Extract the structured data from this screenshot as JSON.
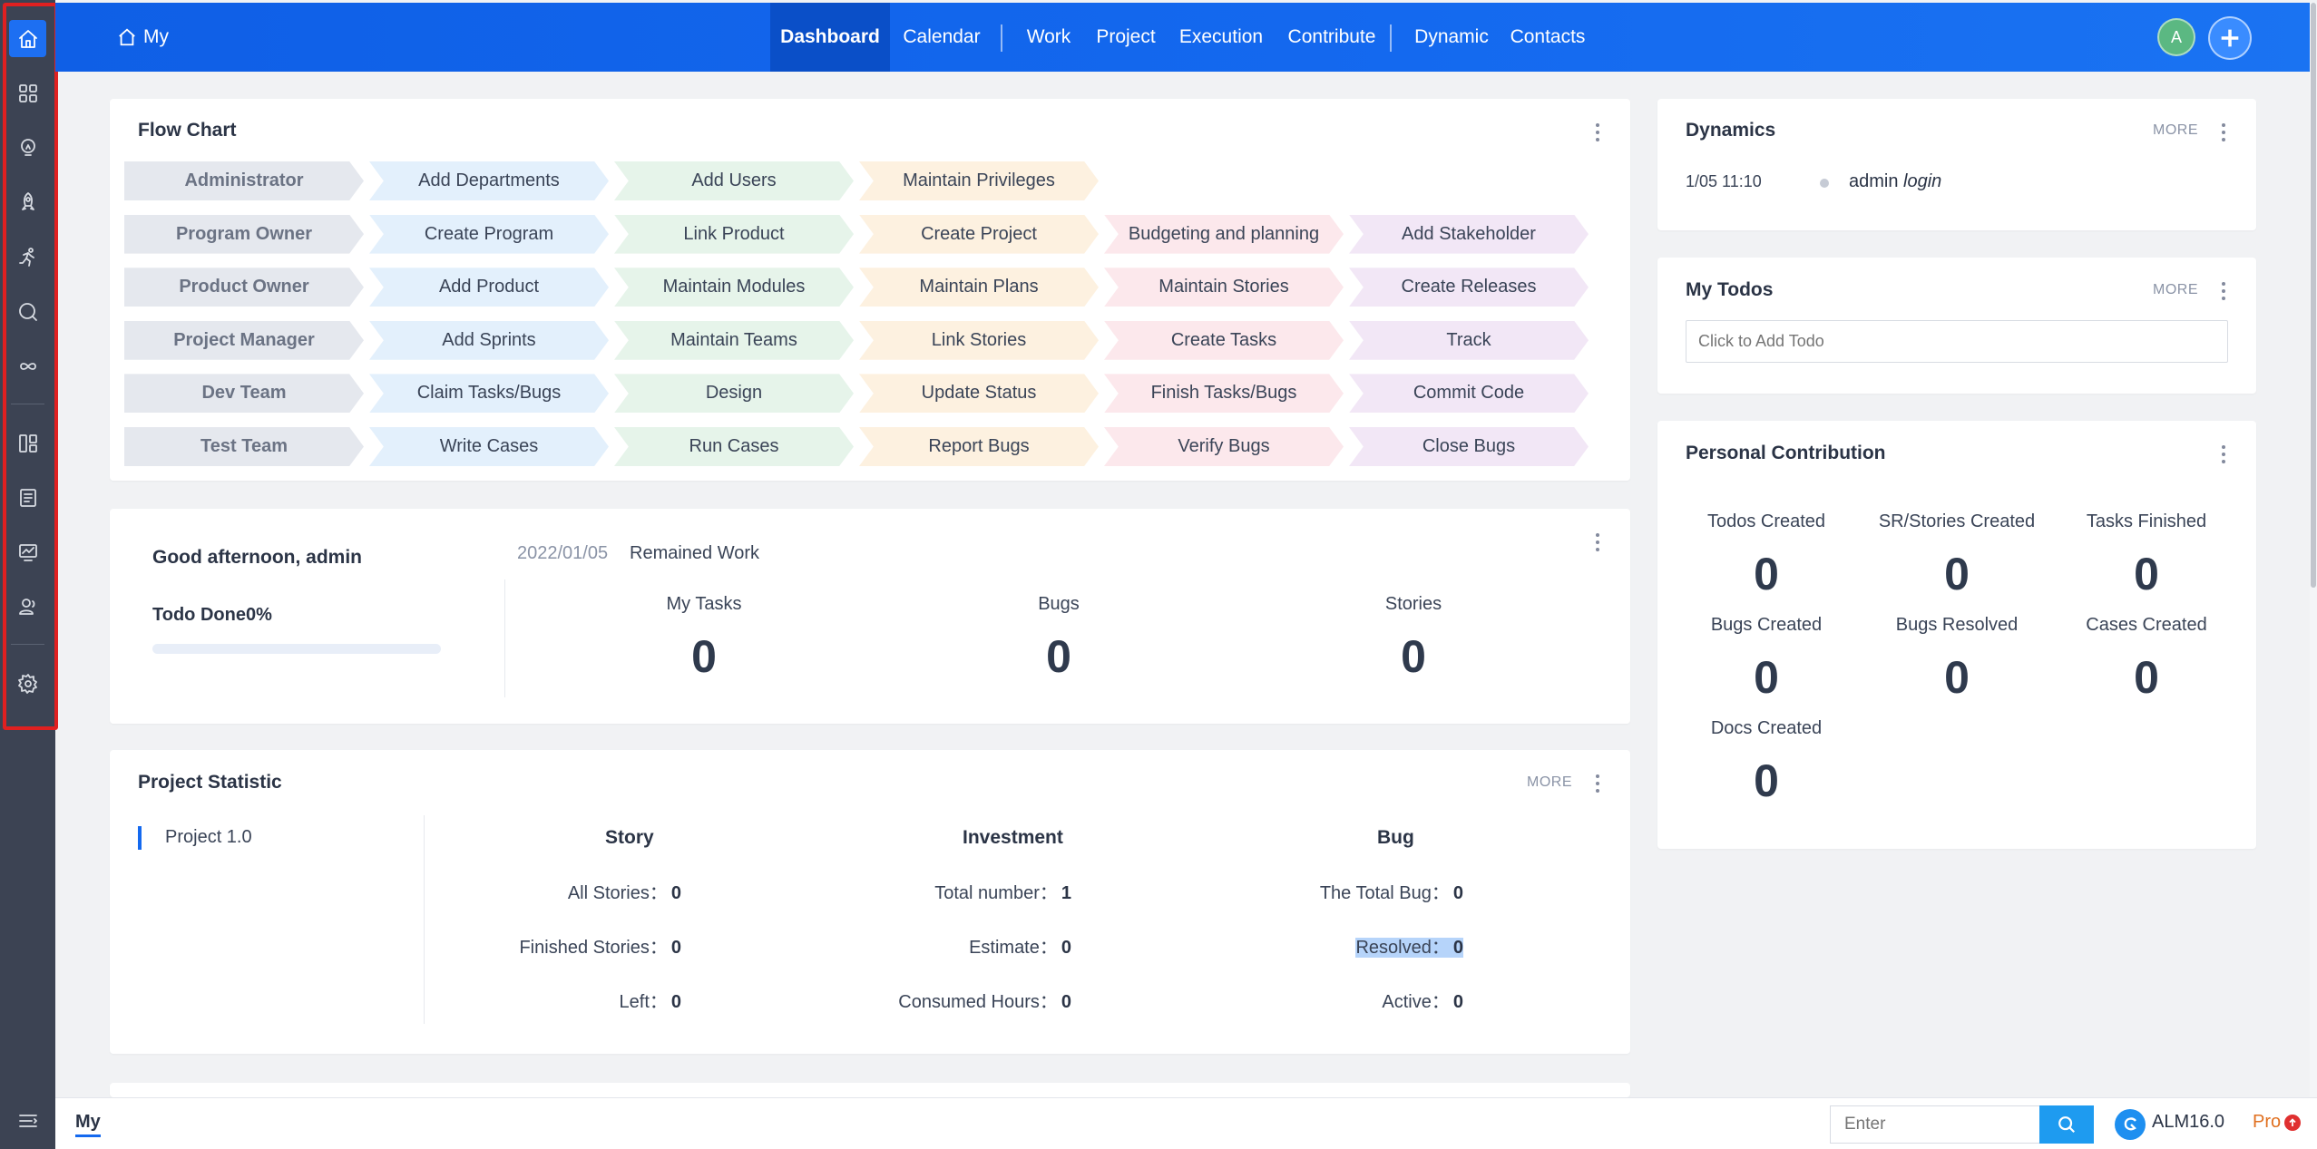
{
  "header": {
    "home_label": "My",
    "nav": [
      {
        "label": "Dashboard"
      },
      {
        "label": "Calendar"
      },
      {
        "label": "Work"
      },
      {
        "label": "Project"
      },
      {
        "label": "Execution"
      },
      {
        "label": "Contribute"
      },
      {
        "label": "Dynamic"
      },
      {
        "label": "Contacts"
      }
    ],
    "avatar_initial": "A"
  },
  "sidebar": {
    "icons": [
      "home-icon",
      "apps-grid-icon",
      "lightbulb-icon",
      "rocket-icon",
      "running-person-icon",
      "search-bubble-icon",
      "infinity-icon",
      "kanban-icon",
      "document-list-icon",
      "monitor-chart-icon",
      "contacts-icon",
      "settings-icon"
    ],
    "active": "home-icon"
  },
  "flow_chart": {
    "title": "Flow Chart",
    "rows": [
      {
        "role": "Administrator",
        "steps": [
          "Add Departments",
          "Add Users",
          "Maintain Privileges"
        ]
      },
      {
        "role": "Program Owner",
        "steps": [
          "Create Program",
          "Link Product",
          "Create Project",
          "Budgeting and planning",
          "Add Stakeholder"
        ]
      },
      {
        "role": "Product Owner",
        "steps": [
          "Add Product",
          "Maintain Modules",
          "Maintain Plans",
          "Maintain Stories",
          "Create Releases"
        ]
      },
      {
        "role": "Project Manager",
        "steps": [
          "Add Sprints",
          "Maintain Teams",
          "Link Stories",
          "Create Tasks",
          "Track"
        ]
      },
      {
        "role": "Dev Team",
        "steps": [
          "Claim Tasks/Bugs",
          "Design",
          "Update Status",
          "Finish Tasks/Bugs",
          "Commit Code"
        ]
      },
      {
        "role": "Test Team",
        "steps": [
          "Write Cases",
          "Run Cases",
          "Report Bugs",
          "Verify Bugs",
          "Close Bugs"
        ]
      }
    ]
  },
  "welcome": {
    "greeting": "Good afternoon, admin",
    "todo_done": "Todo Done0%",
    "todo_progress": 0,
    "date": "2022/01/05",
    "remained_work": "Remained Work",
    "stats": [
      {
        "label": "My Tasks",
        "value": "0"
      },
      {
        "label": "Bugs",
        "value": "0"
      },
      {
        "label": "Stories",
        "value": "0"
      }
    ]
  },
  "project_statistic": {
    "title": "Project Statistic",
    "more": "MORE",
    "project": "Project 1.0",
    "columns": [
      {
        "title": "Story",
        "lines": [
          {
            "label": "All Stories：",
            "value": "0"
          },
          {
            "label": "Finished Stories：",
            "value": "0"
          },
          {
            "label": "Left：",
            "value": "0"
          }
        ]
      },
      {
        "title": "Investment",
        "lines": [
          {
            "label": "Total number：",
            "value": "1"
          },
          {
            "label": "Estimate：",
            "value": "0"
          },
          {
            "label": "Consumed Hours：",
            "value": "0"
          }
        ]
      },
      {
        "title": "Bug",
        "lines": [
          {
            "label": "The Total Bug：",
            "value": "0"
          },
          {
            "label": "Resolved：",
            "value": "0"
          },
          {
            "label": "Active：",
            "value": "0"
          }
        ]
      }
    ]
  },
  "dynamics": {
    "title": "Dynamics",
    "more": "MORE",
    "items": [
      {
        "time": "1/05 11:10",
        "user": "admin",
        "action": "login"
      }
    ]
  },
  "todos": {
    "title": "My Todos",
    "more": "MORE",
    "placeholder": "Click to Add Todo"
  },
  "contribution": {
    "title": "Personal Contribution",
    "items": [
      {
        "label": "Todos Created",
        "value": "0"
      },
      {
        "label": "SR/Stories Created",
        "value": "0"
      },
      {
        "label": "Tasks Finished",
        "value": "0"
      },
      {
        "label": "Bugs Created",
        "value": "0"
      },
      {
        "label": "Bugs Resolved",
        "value": "0"
      },
      {
        "label": "Cases Created",
        "value": "0"
      },
      {
        "label": "Docs Created",
        "value": "0"
      }
    ]
  },
  "footer": {
    "tab": "My",
    "search_placeholder": "Enter",
    "version": "ALM16.0",
    "edition": "Pro"
  },
  "colors": {
    "accent": "#1469ef",
    "sidebar": "#3c4353",
    "highlight": "#e02020"
  }
}
